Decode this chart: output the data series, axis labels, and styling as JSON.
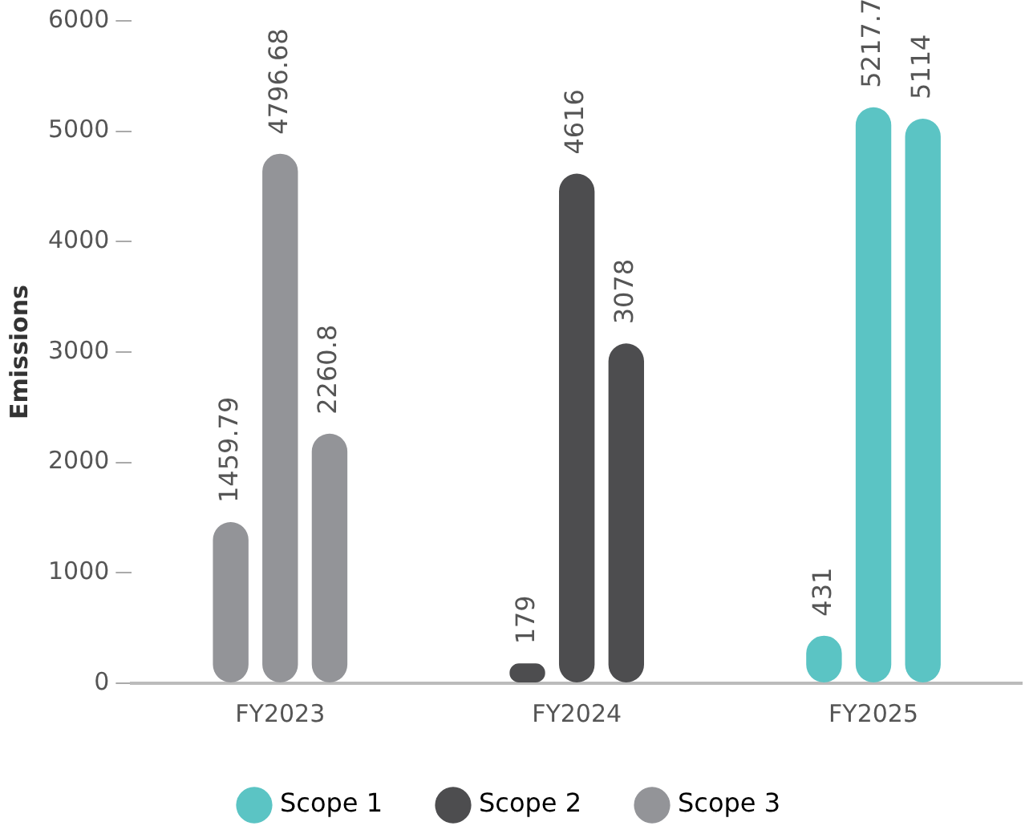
{
  "chart_data": {
    "type": "bar",
    "ylabel": "Emissions",
    "categories": [
      "FY2023",
      "FY2024",
      "FY2025"
    ],
    "ylim": [
      0,
      6000
    ],
    "yticks": [
      0,
      1000,
      2000,
      3000,
      4000,
      5000,
      6000
    ],
    "legend": "bottom",
    "data_labels": true,
    "series": [
      {
        "name": "Scope 1",
        "color": "#5bc4c4",
        "colors": [
          "#939498",
          "#4d4d4f",
          "#5bc4c4"
        ],
        "values": [
          1459.79,
          179,
          431
        ]
      },
      {
        "name": "Scope 2",
        "color": "#4d4d4f",
        "colors": [
          "#939498",
          "#4d4d4f",
          "#5bc4c4"
        ],
        "values": [
          4796.68,
          4616,
          5217.7
        ]
      },
      {
        "name": "Scope 3",
        "color": "#939498",
        "colors": [
          "#939498",
          "#4d4d4f",
          "#5bc4c4"
        ],
        "values": [
          2260.8,
          3078,
          5114
        ]
      }
    ]
  }
}
